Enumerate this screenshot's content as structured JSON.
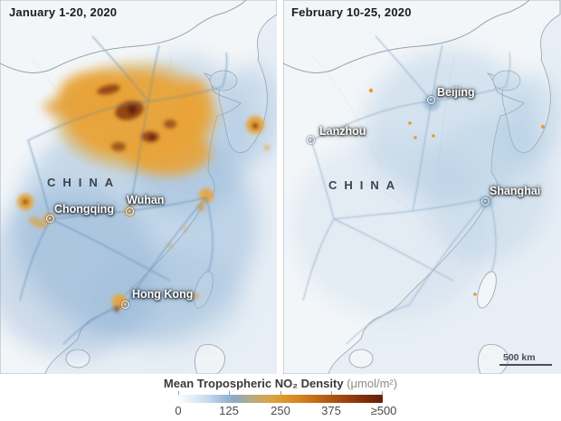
{
  "panels": [
    {
      "id": "january",
      "date_label": "January 1-20, 2020",
      "country_label": "CHINA",
      "cities": [
        {
          "name": "Chongqing"
        },
        {
          "name": "Wuhan"
        },
        {
          "name": "Hong Kong"
        }
      ]
    },
    {
      "id": "february",
      "date_label": "February 10-25, 2020",
      "country_label": "CHINA",
      "cities": [
        {
          "name": "Lanzhou"
        },
        {
          "name": "Beijing"
        },
        {
          "name": "Shanghai"
        }
      ],
      "scale_bar_label": "500 km"
    }
  ],
  "legend": {
    "title": "Mean Tropospheric NO₂ Density",
    "unit": "(μmol/m²)",
    "ticks": [
      "0",
      "125",
      "250",
      "375",
      "≥500"
    ],
    "value_range": [
      0,
      500
    ],
    "colors": {
      "zero": "#ffffff",
      "diffuse_blue": "#8aaac7",
      "moderate_orange": "#e09a31",
      "high_rust": "#b85c12",
      "max_dark_brown": "#62200a"
    }
  }
}
